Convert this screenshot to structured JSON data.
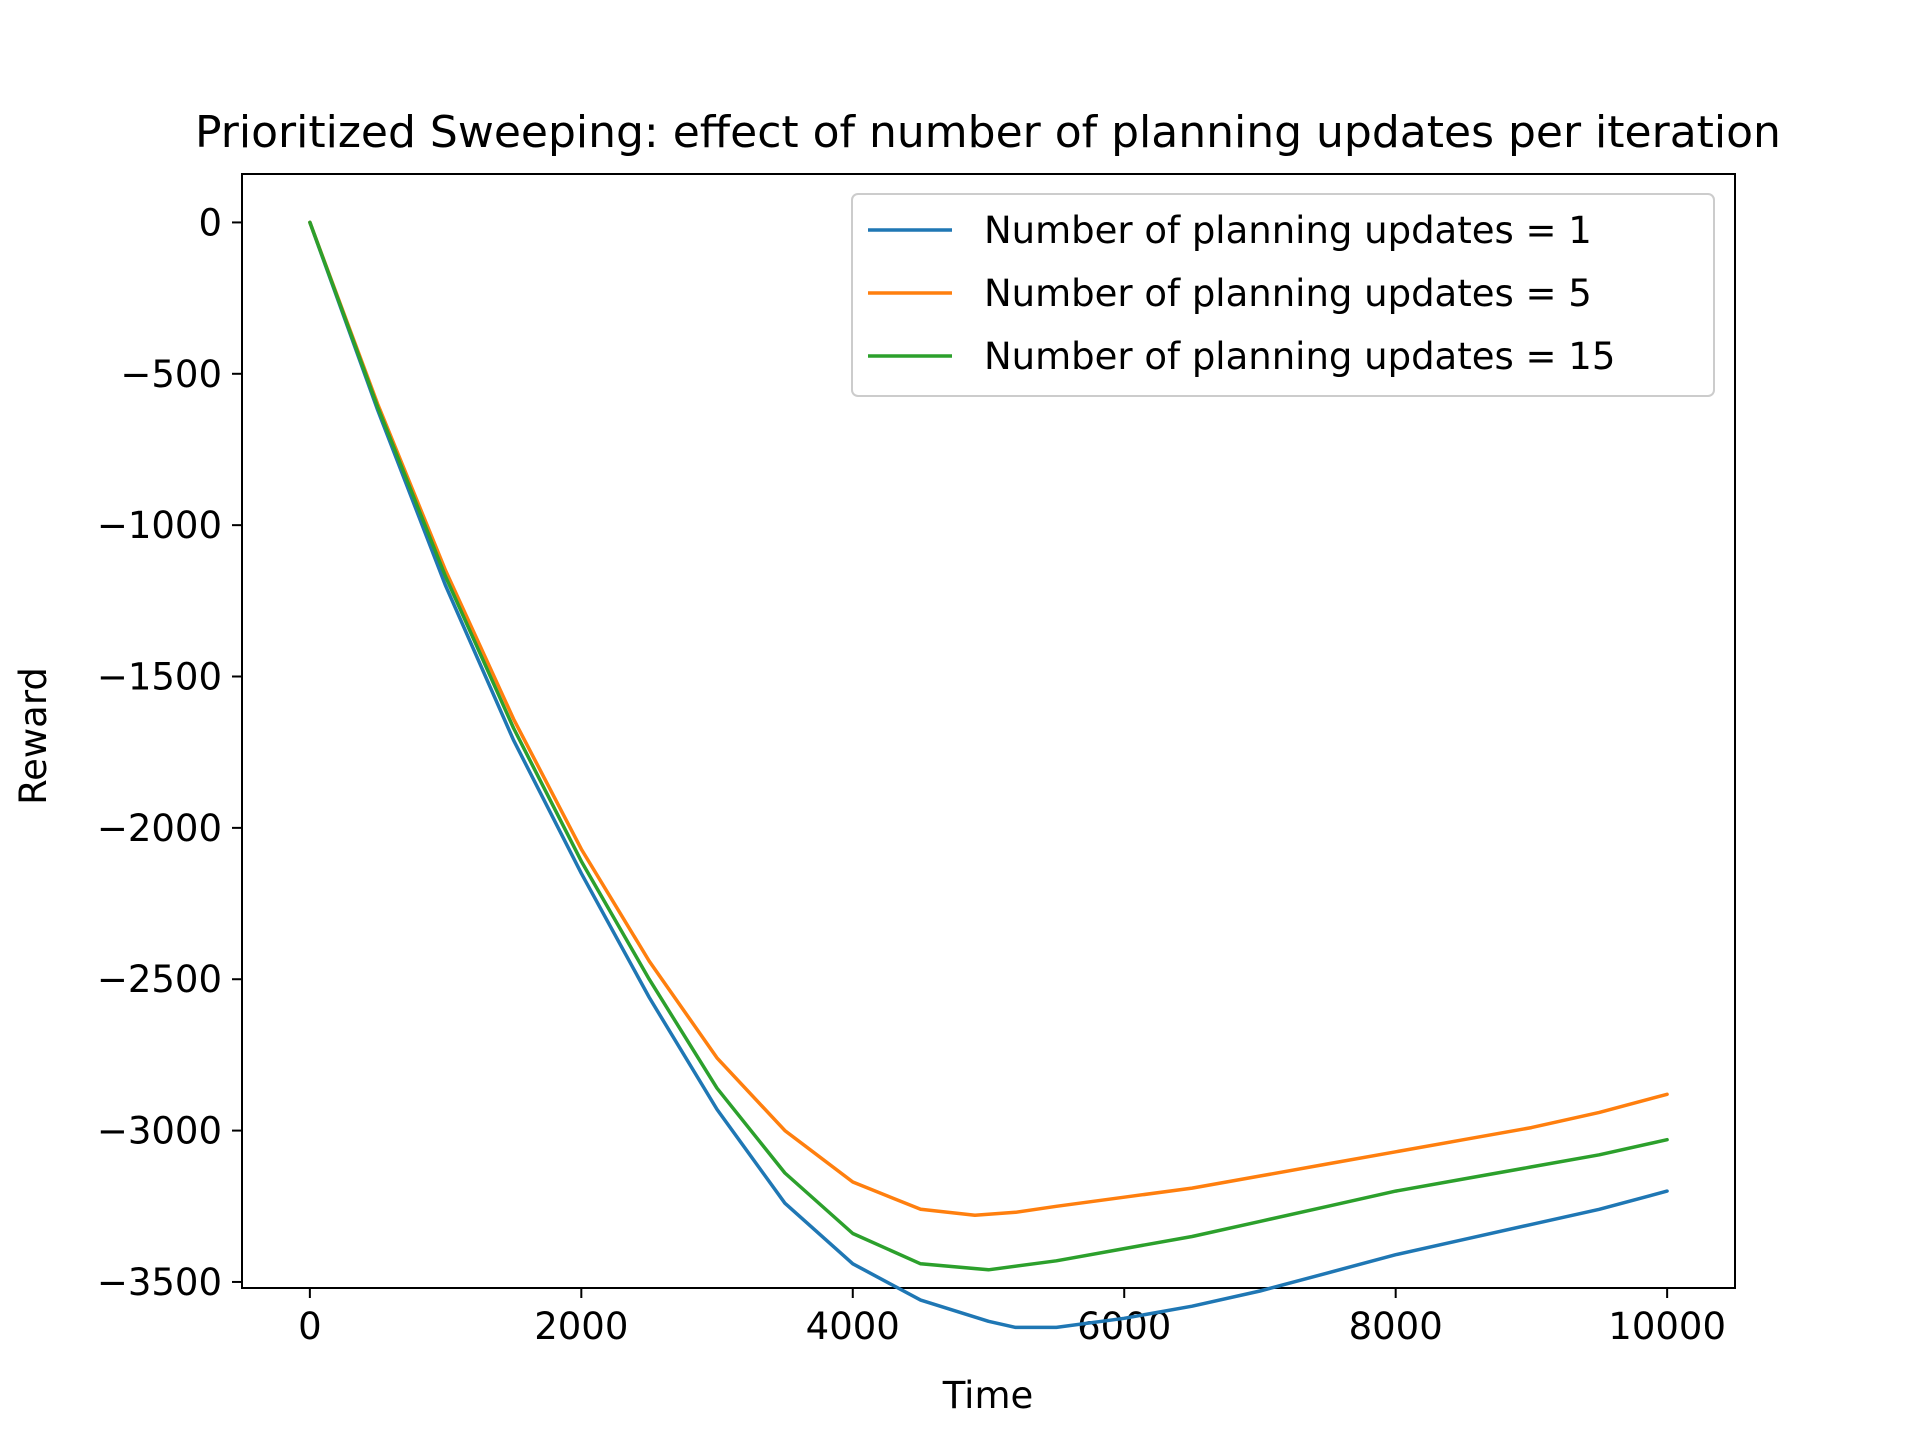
{
  "chart_data": {
    "type": "line",
    "title": "Prioritized Sweeping: effect of number of planning updates per iteration",
    "xlabel": "Time",
    "ylabel": "Reward",
    "xlim": [
      -500,
      10500
    ],
    "ylim": [
      -3520,
      160
    ],
    "xticks": [
      0,
      2000,
      4000,
      6000,
      8000,
      10000
    ],
    "xtick_labels": [
      "0",
      "2000",
      "4000",
      "6000",
      "8000",
      "10000"
    ],
    "yticks": [
      0,
      -500,
      -1000,
      -1500,
      -2000,
      -2500,
      -3000,
      -3500
    ],
    "ytick_labels": [
      "0",
      "−500",
      "−1000",
      "−1500",
      "−2000",
      "−2500",
      "−3000",
      "−3500"
    ],
    "grid": false,
    "legend_position": "upper-right",
    "series": [
      {
        "name": "Number of planning updates = 1",
        "color": "#1f77b4",
        "x": [
          0,
          500,
          1000,
          1500,
          2000,
          2500,
          3000,
          3500,
          4000,
          4500,
          5000,
          5200,
          5500,
          6000,
          6500,
          7000,
          7500,
          8000,
          8500,
          9000,
          9500,
          10000
        ],
        "y": [
          0,
          -620,
          -1200,
          -1710,
          -2150,
          -2560,
          -2930,
          -3240,
          -3440,
          -3560,
          -3630,
          -3650,
          -3650,
          -3620,
          -3580,
          -3530,
          -3470,
          -3410,
          -3360,
          -3310,
          -3260,
          -3200
        ]
      },
      {
        "name": "Number of planning updates = 5",
        "color": "#ff7f0e",
        "x": [
          0,
          500,
          1000,
          1500,
          2000,
          2500,
          3000,
          3500,
          4000,
          4500,
          4900,
          5200,
          5500,
          6000,
          6500,
          7000,
          7500,
          8000,
          8500,
          9000,
          9500,
          10000
        ],
        "y": [
          0,
          -600,
          -1150,
          -1640,
          -2070,
          -2440,
          -2760,
          -3000,
          -3170,
          -3260,
          -3280,
          -3270,
          -3250,
          -3220,
          -3190,
          -3150,
          -3110,
          -3070,
          -3030,
          -2990,
          -2940,
          -2880
        ]
      },
      {
        "name": "Number of planning updates = 15",
        "color": "#2ca02c",
        "x": [
          0,
          500,
          1000,
          1500,
          2000,
          2500,
          3000,
          3500,
          4000,
          4500,
          5000,
          5500,
          6000,
          6500,
          7000,
          7500,
          8000,
          8500,
          9000,
          9500,
          10000
        ],
        "y": [
          0,
          -610,
          -1170,
          -1670,
          -2110,
          -2500,
          -2860,
          -3140,
          -3340,
          -3440,
          -3460,
          -3430,
          -3390,
          -3350,
          -3300,
          -3250,
          -3200,
          -3160,
          -3120,
          -3080,
          -3030
        ]
      }
    ]
  }
}
